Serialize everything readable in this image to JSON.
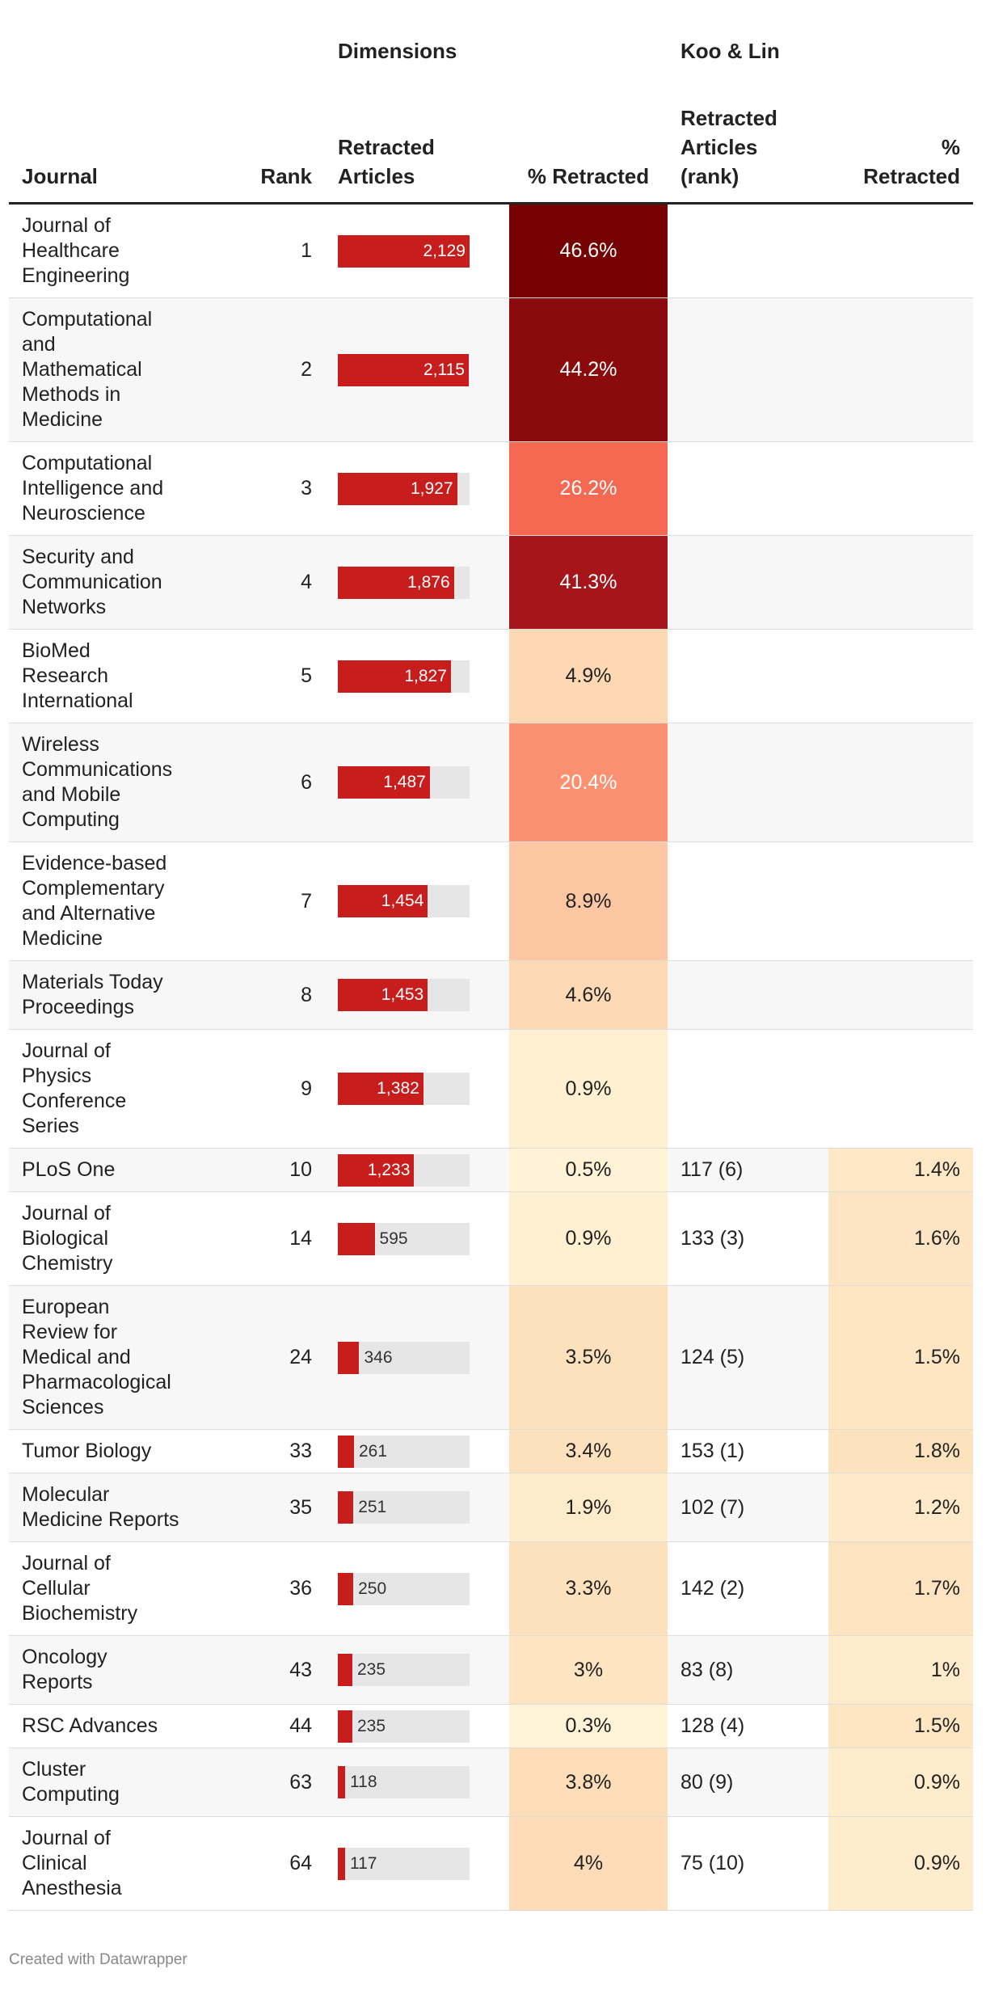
{
  "table": {
    "group_headers": [
      "Dimensions",
      "Koo & Lin"
    ],
    "columns": [
      "Journal",
      "Rank",
      "Retracted Articles",
      "% Retracted",
      "Retracted Articles (rank)",
      "% Retracted"
    ],
    "rows": [
      {
        "journal": "Journal of Healthcare Engineering",
        "rank": 1,
        "articles": 2129,
        "articles_label": "2,129",
        "pct": 46.6,
        "pct_label": "46.6%"
      },
      {
        "journal": "Computational and Mathematical Methods in Medicine",
        "rank": 2,
        "articles": 2115,
        "articles_label": "2,115",
        "pct": 44.2,
        "pct_label": "44.2%"
      },
      {
        "journal": "Computational Intelligence and Neuroscience",
        "rank": 3,
        "articles": 1927,
        "articles_label": "1,927",
        "pct": 26.2,
        "pct_label": "26.2%"
      },
      {
        "journal": "Security and Communication Networks",
        "rank": 4,
        "articles": 1876,
        "articles_label": "1,876",
        "pct": 41.3,
        "pct_label": "41.3%"
      },
      {
        "journal": "BioMed Research International",
        "rank": 5,
        "articles": 1827,
        "articles_label": "1,827",
        "pct": 4.9,
        "pct_label": "4.9%"
      },
      {
        "journal": "Wireless Communications and Mobile Computing",
        "rank": 6,
        "articles": 1487,
        "articles_label": "1,487",
        "pct": 20.4,
        "pct_label": "20.4%"
      },
      {
        "journal": "Evidence-based Complementary and Alternative Medicine",
        "rank": 7,
        "articles": 1454,
        "articles_label": "1,454",
        "pct": 8.9,
        "pct_label": "8.9%"
      },
      {
        "journal": "Materials Today Proceedings",
        "rank": 8,
        "articles": 1453,
        "articles_label": "1,453",
        "pct": 4.6,
        "pct_label": "4.6%"
      },
      {
        "journal": "Journal of Physics Conference Series",
        "rank": 9,
        "articles": 1382,
        "articles_label": "1,382",
        "pct": 0.9,
        "pct_label": "0.9%"
      },
      {
        "journal": "PLoS One",
        "rank": 10,
        "articles": 1233,
        "articles_label": "1,233",
        "pct": 0.5,
        "pct_label": "0.5%",
        "koo_articles": "117 (6)",
        "koo_pct": 1.4,
        "koo_pct_label": "1.4%"
      },
      {
        "journal": "Journal of Biological Chemistry",
        "rank": 14,
        "articles": 595,
        "pct": 0.9,
        "pct_label": "0.9%",
        "koo_articles": "133 (3)",
        "koo_pct": 1.6,
        "koo_pct_label": "1.6%"
      },
      {
        "journal": "European Review for Medical and Pharmacological Sciences",
        "rank": 24,
        "articles": 346,
        "pct": 3.5,
        "pct_label": "3.5%",
        "koo_articles": "124 (5)",
        "koo_pct": 1.5,
        "koo_pct_label": "1.5%"
      },
      {
        "journal": "Tumor Biology",
        "rank": 33,
        "articles": 261,
        "pct": 3.4,
        "pct_label": "3.4%",
        "koo_articles": "153 (1)",
        "koo_pct": 1.8,
        "koo_pct_label": "1.8%"
      },
      {
        "journal": "Molecular Medicine Reports",
        "rank": 35,
        "articles": 251,
        "pct": 1.9,
        "pct_label": "1.9%",
        "koo_articles": "102 (7)",
        "koo_pct": 1.2,
        "koo_pct_label": "1.2%"
      },
      {
        "journal": "Journal of Cellular Biochemistry",
        "rank": 36,
        "articles": 250,
        "pct": 3.3,
        "pct_label": "3.3%",
        "koo_articles": "142 (2)",
        "koo_pct": 1.7,
        "koo_pct_label": "1.7%"
      },
      {
        "journal": "Oncology Reports",
        "rank": 43,
        "articles": 235,
        "pct": 3,
        "pct_label": "3%",
        "koo_articles": "83 (8)",
        "koo_pct": 1,
        "koo_pct_label": "1%"
      },
      {
        "journal": "RSC Advances",
        "rank": 44,
        "articles": 235,
        "pct": 0.3,
        "pct_label": "0.3%",
        "koo_articles": "128 (4)",
        "koo_pct": 1.5,
        "koo_pct_label": "1.5%"
      },
      {
        "journal": "Cluster Computing",
        "rank": 63,
        "articles": 118,
        "pct": 3.8,
        "pct_label": "3.8%",
        "koo_articles": "80 (9)",
        "koo_pct": 0.9,
        "koo_pct_label": "0.9%"
      },
      {
        "journal": "Journal of Clinical Anesthesia",
        "rank": 64,
        "articles": 117,
        "pct": 4,
        "pct_label": "4%",
        "koo_articles": "75 (10)",
        "koo_pct": 0.9,
        "koo_pct_label": "0.9%"
      }
    ]
  },
  "footer": "Created with Datawrapper"
}
